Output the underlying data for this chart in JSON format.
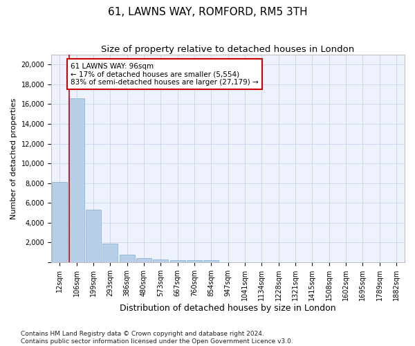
{
  "title": "61, LAWNS WAY, ROMFORD, RM5 3TH",
  "subtitle": "Size of property relative to detached houses in London",
  "xlabel": "Distribution of detached houses by size in London",
  "ylabel": "Number of detached properties",
  "categories": [
    "12sqm",
    "106sqm",
    "199sqm",
    "293sqm",
    "386sqm",
    "480sqm",
    "573sqm",
    "667sqm",
    "760sqm",
    "854sqm",
    "947sqm",
    "1041sqm",
    "1134sqm",
    "1228sqm",
    "1321sqm",
    "1415sqm",
    "1508sqm",
    "1602sqm",
    "1695sqm",
    "1789sqm",
    "1882sqm"
  ],
  "bar_heights": [
    8100,
    16600,
    5300,
    1850,
    750,
    370,
    280,
    220,
    210,
    170,
    0,
    0,
    0,
    0,
    0,
    0,
    0,
    0,
    0,
    0,
    0
  ],
  "bar_color": "#b8cfe8",
  "bar_edge_color": "#7bafd4",
  "property_line_x": 0.56,
  "property_line_color": "#cc0000",
  "annotation_text": "61 LAWNS WAY: 96sqm\n← 17% of detached houses are smaller (5,554)\n83% of semi-detached houses are larger (27,179) →",
  "annotation_box_facecolor": "#ffffff",
  "annotation_box_edgecolor": "#cc0000",
  "ylim": [
    0,
    21000
  ],
  "yticks": [
    0,
    2000,
    4000,
    6000,
    8000,
    10000,
    12000,
    14000,
    16000,
    18000,
    20000
  ],
  "grid_color": "#c8d4f0",
  "background_color": "#eef2fc",
  "footnote": "Contains HM Land Registry data © Crown copyright and database right 2024.\nContains public sector information licensed under the Open Government Licence v3.0.",
  "title_fontsize": 11,
  "subtitle_fontsize": 9.5,
  "xlabel_fontsize": 9,
  "ylabel_fontsize": 8,
  "tick_fontsize": 7,
  "annot_fontsize": 7.5,
  "footnote_fontsize": 6.5
}
